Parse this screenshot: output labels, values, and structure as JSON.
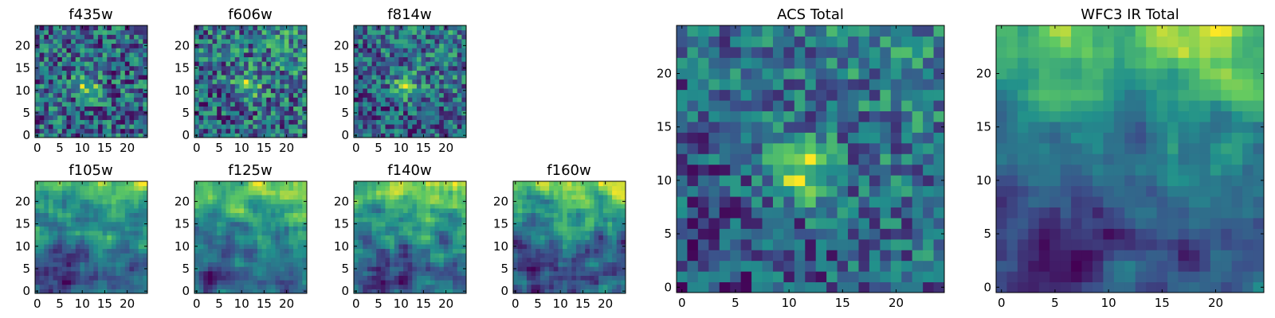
{
  "chart_data": {
    "type": "heatmap",
    "colormap": "viridis",
    "colors": [
      "#440154",
      "#3b528b",
      "#21908c",
      "#5dc863",
      "#fde725"
    ],
    "panels": [
      {
        "id": "f435w",
        "title": "f435w",
        "xlim": [
          0,
          24
        ],
        "ylim": [
          0,
          24
        ],
        "xticks": [
          0,
          5,
          10,
          15,
          20
        ],
        "yticks": [
          0,
          5,
          10,
          15,
          20
        ],
        "xticklabels": [
          "0",
          "5",
          "10",
          "15",
          "20"
        ],
        "yticklabels": [
          "0",
          "5",
          "10",
          "15",
          "20"
        ]
      },
      {
        "id": "f606w",
        "title": "f606w",
        "xlim": [
          0,
          24
        ],
        "ylim": [
          0,
          24
        ],
        "xticks": [
          0,
          5,
          10,
          15,
          20
        ],
        "yticks": [
          0,
          5,
          10,
          15,
          20
        ],
        "xticklabels": [
          "0",
          "5",
          "10",
          "15",
          "20"
        ],
        "yticklabels": [
          "0",
          "5",
          "10",
          "15",
          "20"
        ]
      },
      {
        "id": "f814w",
        "title": "f814w",
        "xlim": [
          0,
          24
        ],
        "ylim": [
          0,
          24
        ],
        "xticks": [
          0,
          5,
          10,
          15,
          20
        ],
        "yticks": [
          0,
          5,
          10,
          15,
          20
        ],
        "xticklabels": [
          "0",
          "5",
          "10",
          "15",
          "20"
        ],
        "yticklabels": [
          "0",
          "5",
          "10",
          "15",
          "20"
        ]
      },
      {
        "id": "f105w",
        "title": "f105w",
        "xlim": [
          0,
          24
        ],
        "ylim": [
          0,
          24
        ],
        "xticks": [
          0,
          5,
          10,
          15,
          20
        ],
        "yticks": [
          0,
          5,
          10,
          15,
          20
        ],
        "xticklabels": [
          "0",
          "5",
          "10",
          "15",
          "20"
        ],
        "yticklabels": [
          "0",
          "5",
          "10",
          "15",
          "20"
        ]
      },
      {
        "id": "f125w",
        "title": "f125w",
        "xlim": [
          0,
          24
        ],
        "ylim": [
          0,
          24
        ],
        "xticks": [
          0,
          5,
          10,
          15,
          20
        ],
        "yticks": [
          0,
          5,
          10,
          15,
          20
        ],
        "xticklabels": [
          "0",
          "5",
          "10",
          "15",
          "20"
        ],
        "yticklabels": [
          "0",
          "5",
          "10",
          "15",
          "20"
        ]
      },
      {
        "id": "f140w",
        "title": "f140w",
        "xlim": [
          0,
          24
        ],
        "ylim": [
          0,
          24
        ],
        "xticks": [
          0,
          5,
          10,
          15,
          20
        ],
        "yticks": [
          0,
          5,
          10,
          15,
          20
        ],
        "xticklabels": [
          "0",
          "5",
          "10",
          "15",
          "20"
        ],
        "yticklabels": [
          "0",
          "5",
          "10",
          "15",
          "20"
        ]
      },
      {
        "id": "f160w",
        "title": "f160w",
        "xlim": [
          0,
          24
        ],
        "ylim": [
          0,
          24
        ],
        "xticks": [
          0,
          5,
          10,
          15,
          20
        ],
        "yticks": [
          0,
          5,
          10,
          15,
          20
        ],
        "xticklabels": [
          "0",
          "5",
          "10",
          "15",
          "20"
        ],
        "yticklabels": [
          "0",
          "5",
          "10",
          "15",
          "20"
        ]
      },
      {
        "id": "acs-total",
        "title": "ACS Total",
        "xlim": [
          0,
          24
        ],
        "ylim": [
          0,
          24
        ],
        "xticks": [
          0,
          5,
          10,
          15,
          20
        ],
        "yticks": [
          0,
          5,
          10,
          15,
          20
        ],
        "xticklabels": [
          "0",
          "5",
          "10",
          "15",
          "20"
        ],
        "yticklabels": [
          "0",
          "5",
          "10",
          "15",
          "20"
        ]
      },
      {
        "id": "wfc3-ir-total",
        "title": "WFC3 IR Total",
        "xlim": [
          0,
          24
        ],
        "ylim": [
          0,
          24
        ],
        "xticks": [
          0,
          5,
          10,
          15,
          20
        ],
        "yticks": [
          0,
          5,
          10,
          15,
          20
        ],
        "xticklabels": [
          "0",
          "5",
          "10",
          "15",
          "20"
        ],
        "yticklabels": [
          "0",
          "5",
          "10",
          "15",
          "20"
        ]
      }
    ]
  }
}
